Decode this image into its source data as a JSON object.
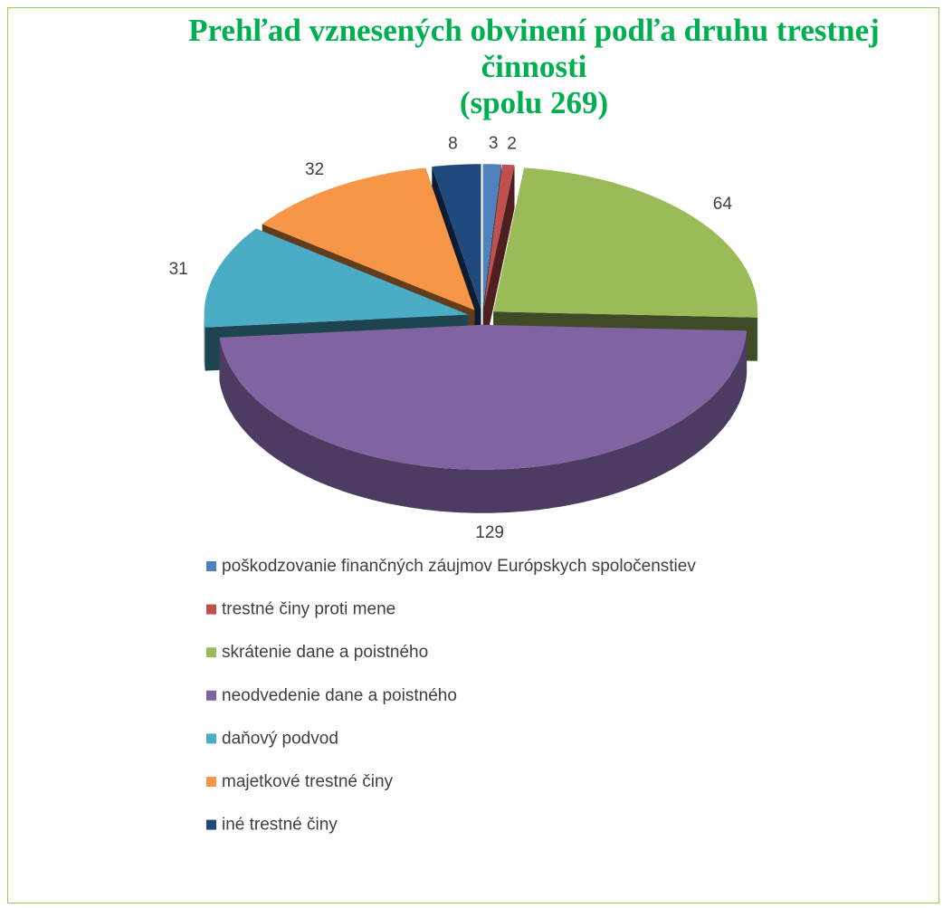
{
  "chart_data": {
    "type": "pie",
    "title": "Prehľad vznesených obvinení podľa druhu trestnej činnosti",
    "subtitle": "(spolu 269)",
    "categories": [
      "poškodzovanie finančných záujmov Európskych spoločenstiev",
      "trestné činy proti mene",
      "skrátenie dane a poistného",
      "neodvedenie dane a poistného",
      "daňový podvod",
      "majetkové trestné činy",
      "iné trestné činy"
    ],
    "values": [
      3,
      2,
      64,
      129,
      31,
      32,
      8
    ],
    "colors": [
      "#4f81bd",
      "#c0504d",
      "#9bbb59",
      "#8064a2",
      "#4bacc6",
      "#f79646",
      "#1f497d"
    ],
    "legend": "bottom"
  }
}
